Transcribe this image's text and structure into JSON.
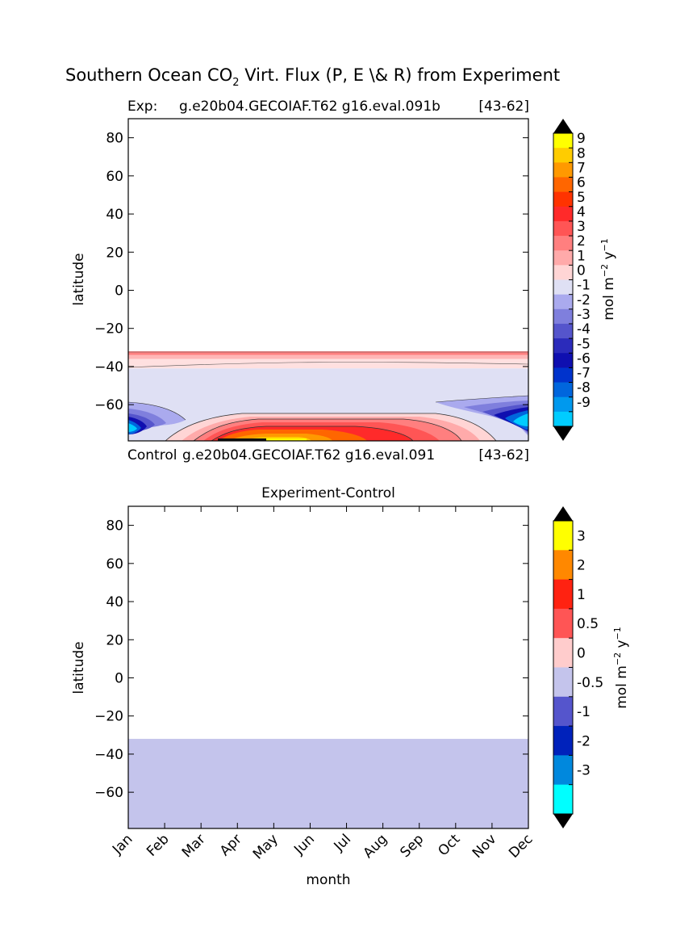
{
  "figure": {
    "title_main": "Southern Ocean CO",
    "title_sub": "2",
    "title_rest": " Virt. Flux (P, E \\& R) from Experiment"
  },
  "top_panel": {
    "exp_label": "Exp:",
    "exp_name": "g.e20b04.GECOIAF.T62 g16.eval.091b",
    "years": "[43-62]",
    "ctrl_label": "Control",
    "ctrl_name": "g.e20b04.GECOIAF.T62 g16.eval.091",
    "ctrl_years": "[43-62]"
  },
  "bottom_panel": {
    "title": "Experiment-Control"
  },
  "chart_data": [
    {
      "type": "heatmap",
      "panel": "experiment",
      "ylabel": "latitude",
      "ylim": [
        -79,
        90
      ],
      "y_ticks": [
        "80",
        "60",
        "40",
        "20",
        "0",
        "−20",
        "−40",
        "−60"
      ],
      "y_tick_values": [
        80,
        60,
        40,
        20,
        0,
        -20,
        -40,
        -60
      ],
      "colorbar": {
        "label": "mol m",
        "label_exp1": "−2",
        "label_mid": " y",
        "label_exp2": "−1",
        "levels": [
          "9",
          "8",
          "7",
          "6",
          "5",
          "4",
          "3",
          "2",
          "1",
          "0",
          "-1",
          "-2",
          "-3",
          "-4",
          "-5",
          "-6",
          "-7",
          "-8",
          "-9"
        ],
        "colors": [
          "#ffff00",
          "#ffcc00",
          "#ff9900",
          "#ff6600",
          "#ff3300",
          "#ff2a2a",
          "#ff5555",
          "#ff7f7f",
          "#ffaaaa",
          "#ffd5d5",
          "#dfe0f4",
          "#aaaaee",
          "#7f7fdd",
          "#5555cc",
          "#2b2bbb",
          "#0f0fb0",
          "#0033cc",
          "#0066dd",
          "#0099ee",
          "#00ccff"
        ]
      },
      "bands": [
        {
          "lat_top": -32,
          "lat_bottom": -34,
          "color": "#ff8080"
        },
        {
          "lat_top": -34,
          "lat_bottom": -36,
          "color": "#ffb6b6"
        },
        {
          "lat_top": -36,
          "lat_bottom": -41,
          "color": "#ffe0e0"
        },
        {
          "lat_top": -41,
          "lat_bottom": -79,
          "color": "#dfe0f4"
        }
      ]
    },
    {
      "type": "heatmap",
      "panel": "difference",
      "xlabel": "month",
      "ylabel": "latitude",
      "ylim": [
        -79,
        90
      ],
      "y_ticks": [
        "80",
        "60",
        "40",
        "20",
        "0",
        "−20",
        "−40",
        "−60"
      ],
      "y_tick_values": [
        80,
        60,
        40,
        20,
        0,
        -20,
        -40,
        -60
      ],
      "categories": [
        "Jan",
        "Feb",
        "Mar",
        "Apr",
        "May",
        "Jun",
        "Jul",
        "Aug",
        "Sep",
        "Oct",
        "Nov",
        "Dec"
      ],
      "fill": {
        "lat_top": -32,
        "lat_bottom": -79,
        "value_range": "-0.5 to 0",
        "color": "#c4c4ec"
      },
      "colorbar": {
        "label": "mol m",
        "label_exp1": "−2",
        "label_mid": " y",
        "label_exp2": "−1",
        "levels": [
          "3",
          "2",
          "1",
          "0.5",
          "0",
          "-0.5",
          "-1",
          "-2",
          "-3"
        ],
        "colors": [
          "#ffff00",
          "#ff8800",
          "#ff2211",
          "#ff5555",
          "#ffcccc",
          "#c4c4ec",
          "#5555cc",
          "#0022bb",
          "#0088dd",
          "#00ffff"
        ]
      }
    }
  ]
}
